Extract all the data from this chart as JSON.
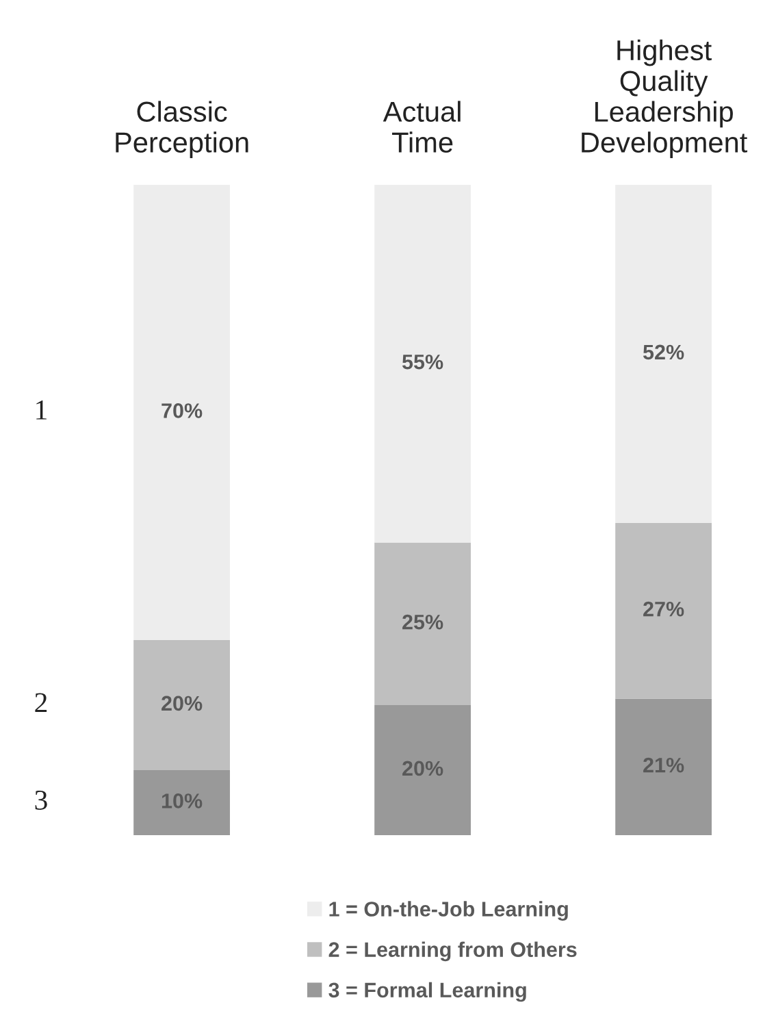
{
  "chart_data": {
    "type": "bar",
    "stacked": true,
    "categories": [
      "Classic Perception",
      "Actual Time",
      "Highest Quality Leadership Development"
    ],
    "series": [
      {
        "name": "3 = Formal Learning",
        "color": "#999999",
        "values": [
          10,
          20,
          21
        ],
        "value_labels": [
          "10%",
          "20%",
          "21%"
        ]
      },
      {
        "name": "2 = Learning from Others",
        "color": "#bfbfbf",
        "values": [
          20,
          25,
          27
        ],
        "value_labels": [
          "20%",
          "25%",
          "27%"
        ]
      },
      {
        "name": "1 = On-the-Job Learning",
        "color": "#ededed",
        "values": [
          70,
          55,
          52
        ],
        "value_labels": [
          "70%",
          "55%",
          "52%"
        ]
      }
    ],
    "annotations": [
      "1",
      "2",
      "3"
    ],
    "legend": "bottom",
    "grid": false
  }
}
